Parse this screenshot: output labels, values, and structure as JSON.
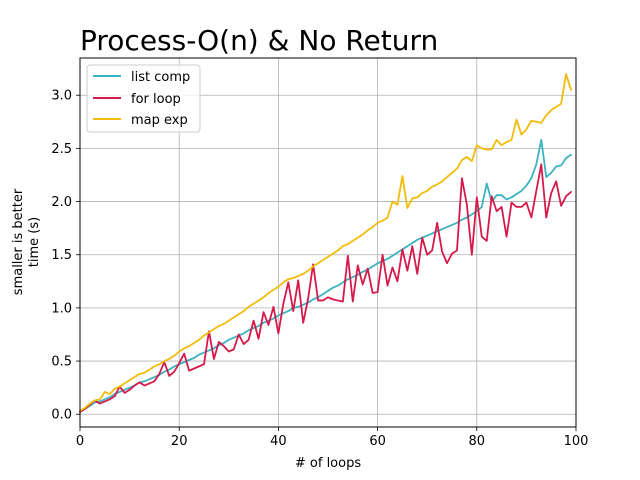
{
  "chart_data": {
    "type": "line",
    "title": "Process-O(n) & No Return",
    "xlabel": "# of loops",
    "ylabel_lines": [
      "smaller is better",
      "time (s)"
    ],
    "xlim": [
      0,
      100
    ],
    "ylim": [
      -0.12,
      3.35
    ],
    "xticks": [
      0,
      20,
      40,
      60,
      80,
      100
    ],
    "yticks": [
      0.0,
      0.5,
      1.0,
      1.5,
      2.0,
      2.5,
      3.0
    ],
    "ytick_labels": [
      "0.0",
      "0.5",
      "1.0",
      "1.5",
      "2.0",
      "2.5",
      "3.0"
    ],
    "grid": true,
    "legend_position": "upper-left",
    "x": [
      0,
      1,
      2,
      3,
      4,
      5,
      6,
      7,
      8,
      9,
      10,
      11,
      12,
      13,
      14,
      15,
      16,
      17,
      18,
      19,
      20,
      21,
      22,
      23,
      24,
      25,
      26,
      27,
      28,
      29,
      30,
      31,
      32,
      33,
      34,
      35,
      36,
      37,
      38,
      39,
      40,
      41,
      42,
      43,
      44,
      45,
      46,
      47,
      48,
      49,
      50,
      51,
      52,
      53,
      54,
      55,
      56,
      57,
      58,
      59,
      60,
      61,
      62,
      63,
      64,
      65,
      66,
      67,
      68,
      69,
      70,
      71,
      72,
      73,
      74,
      75,
      76,
      77,
      78,
      79,
      80,
      81,
      82,
      83,
      84,
      85,
      86,
      87,
      88,
      89,
      90,
      91,
      92,
      93,
      94,
      95,
      96,
      97,
      98,
      99
    ],
    "series": [
      {
        "name": "list comp",
        "color": "#3bb3c0",
        "values": [
          0.03,
          0.05,
          0.08,
          0.11,
          0.12,
          0.14,
          0.16,
          0.19,
          0.21,
          0.23,
          0.25,
          0.27,
          0.3,
          0.31,
          0.33,
          0.35,
          0.37,
          0.4,
          0.42,
          0.45,
          0.47,
          0.49,
          0.51,
          0.53,
          0.56,
          0.58,
          0.6,
          0.62,
          0.65,
          0.67,
          0.7,
          0.72,
          0.74,
          0.76,
          0.79,
          0.81,
          0.83,
          0.86,
          0.88,
          0.9,
          0.93,
          0.95,
          0.97,
          1.0,
          1.01,
          1.03,
          1.05,
          1.08,
          1.1,
          1.13,
          1.16,
          1.19,
          1.21,
          1.24,
          1.27,
          1.29,
          1.31,
          1.34,
          1.36,
          1.39,
          1.42,
          1.44,
          1.46,
          1.49,
          1.52,
          1.55,
          1.58,
          1.61,
          1.64,
          1.66,
          1.68,
          1.7,
          1.72,
          1.74,
          1.76,
          1.78,
          1.8,
          1.83,
          1.85,
          1.88,
          1.91,
          1.95,
          2.17,
          2.0,
          2.06,
          2.06,
          2.02,
          2.04,
          2.07,
          2.1,
          2.15,
          2.22,
          2.35,
          2.58,
          2.23,
          2.27,
          2.33,
          2.34,
          2.41,
          2.44
        ]
      },
      {
        "name": "for loop",
        "color": "#d7194a",
        "values": [
          0.02,
          0.05,
          0.09,
          0.13,
          0.1,
          0.12,
          0.14,
          0.17,
          0.26,
          0.2,
          0.23,
          0.27,
          0.3,
          0.27,
          0.29,
          0.31,
          0.38,
          0.49,
          0.36,
          0.4,
          0.48,
          0.57,
          0.41,
          0.43,
          0.45,
          0.47,
          0.78,
          0.52,
          0.68,
          0.64,
          0.59,
          0.61,
          0.75,
          0.66,
          0.7,
          0.88,
          0.71,
          0.96,
          0.84,
          1.01,
          0.76,
          1.04,
          1.24,
          0.97,
          1.26,
          0.86,
          1.09,
          1.41,
          1.07,
          1.07,
          1.1,
          1.08,
          1.07,
          1.06,
          1.49,
          1.06,
          1.4,
          1.22,
          1.37,
          1.14,
          1.15,
          1.5,
          1.21,
          1.38,
          1.25,
          1.55,
          1.35,
          1.58,
          1.32,
          1.66,
          1.5,
          1.54,
          1.8,
          1.53,
          1.42,
          1.51,
          1.54,
          2.22,
          1.97,
          1.5,
          2.04,
          1.67,
          1.63,
          2.05,
          1.91,
          1.95,
          1.67,
          1.99,
          1.95,
          1.95,
          1.99,
          1.85,
          2.1,
          2.35,
          1.85,
          2.08,
          2.19,
          1.96,
          2.05,
          2.09
        ]
      },
      {
        "name": "map exp",
        "color": "#f2bc0c",
        "values": [
          0.03,
          0.06,
          0.1,
          0.13,
          0.14,
          0.21,
          0.19,
          0.24,
          0.26,
          0.29,
          0.32,
          0.35,
          0.38,
          0.39,
          0.42,
          0.45,
          0.47,
          0.5,
          0.52,
          0.55,
          0.59,
          0.62,
          0.64,
          0.67,
          0.7,
          0.74,
          0.77,
          0.8,
          0.83,
          0.85,
          0.88,
          0.91,
          0.94,
          0.97,
          1.01,
          1.04,
          1.07,
          1.1,
          1.14,
          1.17,
          1.2,
          1.24,
          1.27,
          1.28,
          1.3,
          1.32,
          1.35,
          1.39,
          1.42,
          1.45,
          1.48,
          1.51,
          1.54,
          1.58,
          1.6,
          1.63,
          1.66,
          1.69,
          1.73,
          1.76,
          1.8,
          1.82,
          1.85,
          2.0,
          1.97,
          2.24,
          1.94,
          2.03,
          2.04,
          2.08,
          2.1,
          2.14,
          2.16,
          2.19,
          2.23,
          2.27,
          2.31,
          2.39,
          2.42,
          2.38,
          2.53,
          2.5,
          2.49,
          2.49,
          2.58,
          2.53,
          2.56,
          2.58,
          2.77,
          2.63,
          2.68,
          2.76,
          2.75,
          2.74,
          2.81,
          2.86,
          2.89,
          2.92,
          3.2,
          3.05
        ]
      }
    ]
  }
}
